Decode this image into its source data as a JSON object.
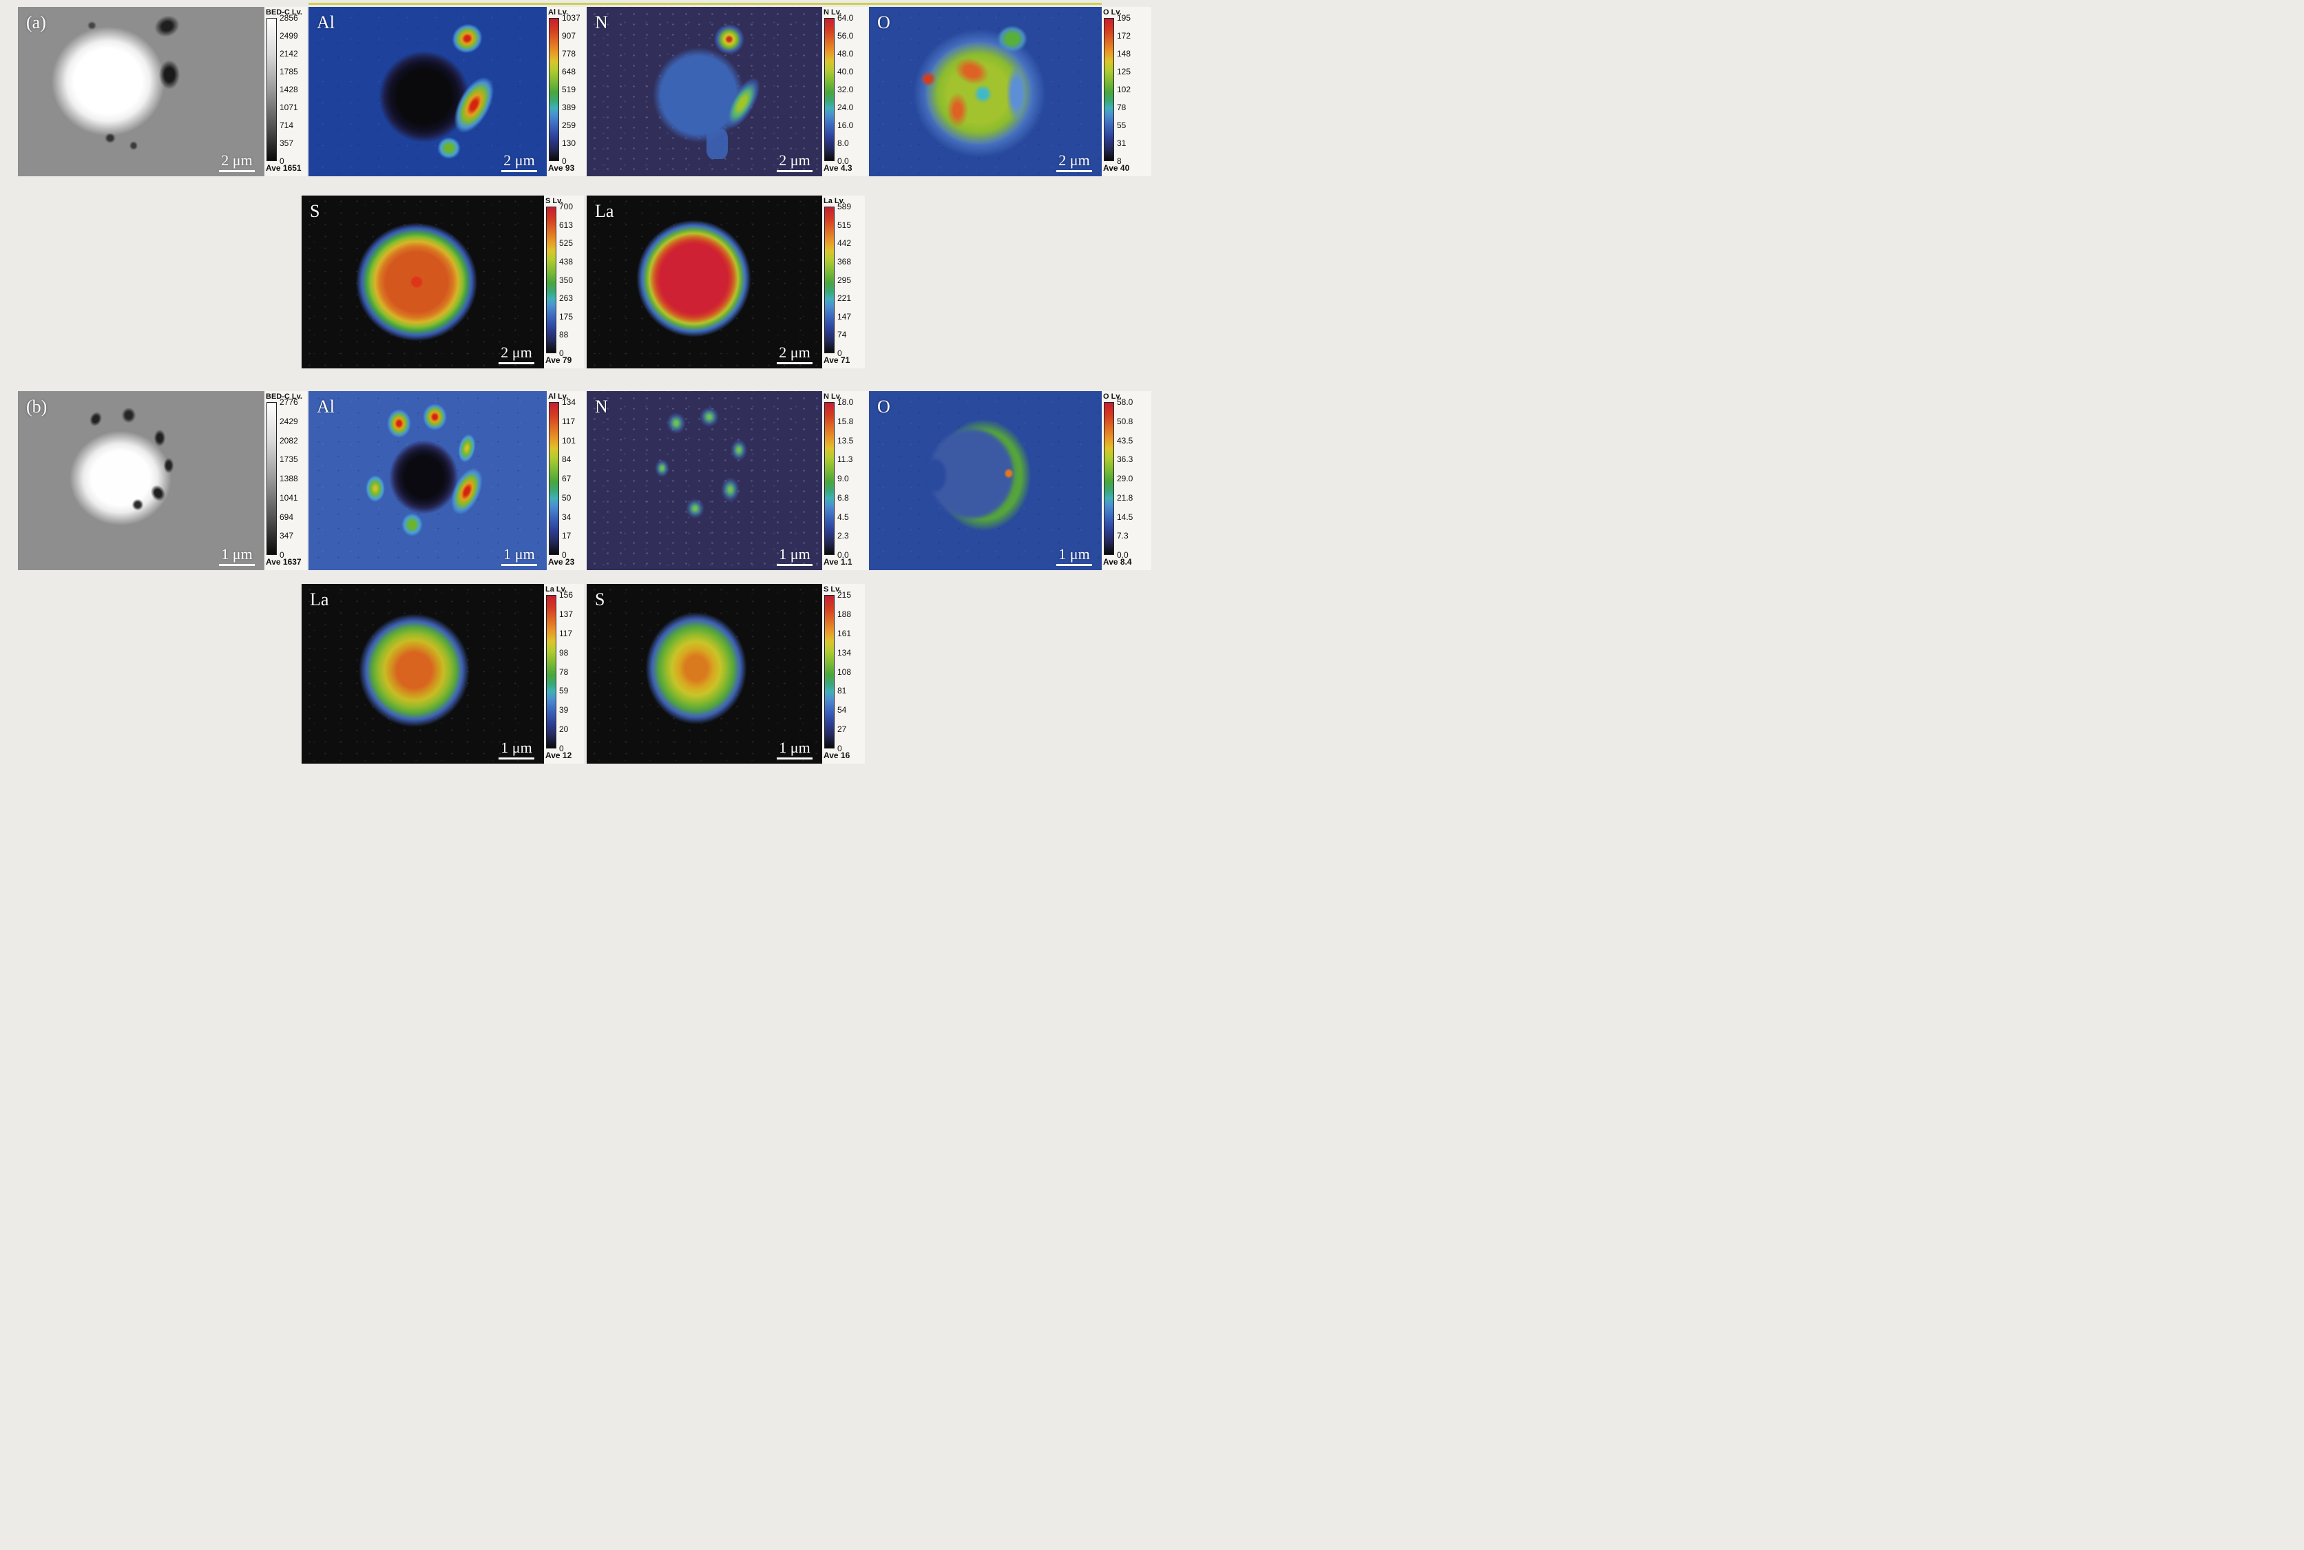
{
  "figure_type": "EPMA elemental mapping figure, panels (a) and (b)",
  "colors": {
    "page_background": "#edebe8",
    "map_blue_background": "#1e419b",
    "map_navy_background": "#312f5a",
    "map_black_background": "#0d0d0d",
    "map_gray_background": "#8e8e8e",
    "top_accent_line": "#cdd04f"
  },
  "panel_a": {
    "label": "(a)",
    "scale_bar_label": "2 μm",
    "maps": [
      {
        "key": "bedc_a",
        "label": "(a)",
        "scale": "2 μm",
        "cbar_title": "BED-C Lv.",
        "ave": "Ave 1651",
        "ticks": [
          "2856",
          "2499",
          "2142",
          "1785",
          "1428",
          "1071",
          "714",
          "357",
          "0"
        ]
      },
      {
        "key": "al_a",
        "label": "Al",
        "scale": "2 μm",
        "cbar_title": "Al Lv.",
        "ave": "Ave 93",
        "ticks": [
          "1037",
          "907",
          "778",
          "648",
          "519",
          "389",
          "259",
          "130",
          "0"
        ]
      },
      {
        "key": "n_a",
        "label": "N",
        "scale": "2 μm",
        "cbar_title": "N Lv.",
        "ave": "Ave 4.3",
        "ticks": [
          "64.0",
          "56.0",
          "48.0",
          "40.0",
          "32.0",
          "24.0",
          "16.0",
          "8.0",
          "0.0"
        ]
      },
      {
        "key": "o_a",
        "label": "O",
        "scale": "2 μm",
        "cbar_title": "O Lv.",
        "ave": "Ave 40",
        "ticks": [
          "195",
          "172",
          "148",
          "125",
          "102",
          "78",
          "55",
          "31",
          "8"
        ]
      },
      {
        "key": "s_a",
        "label": "S",
        "scale": "2 μm",
        "cbar_title": "S Lv.",
        "ave": "Ave 79",
        "ticks": [
          "700",
          "613",
          "525",
          "438",
          "350",
          "263",
          "175",
          "88",
          "0"
        ]
      },
      {
        "key": "la_a",
        "label": "La",
        "scale": "2 μm",
        "cbar_title": "La Lv.",
        "ave": "Ave 71",
        "ticks": [
          "589",
          "515",
          "442",
          "368",
          "295",
          "221",
          "147",
          "74",
          "0"
        ]
      }
    ]
  },
  "panel_b": {
    "label": "(b)",
    "scale_bar_label": "1 μm",
    "maps": [
      {
        "key": "bedc_b",
        "label": "(b)",
        "scale": "1 μm",
        "cbar_title": "BED-C Lv.",
        "ave": "Ave 1637",
        "ticks": [
          "2776",
          "2429",
          "2082",
          "1735",
          "1388",
          "1041",
          "694",
          "347",
          "0"
        ]
      },
      {
        "key": "al_b",
        "label": "Al",
        "scale": "1 μm",
        "cbar_title": "Al Lv.",
        "ave": "Ave 23",
        "ticks": [
          "134",
          "117",
          "101",
          "84",
          "67",
          "50",
          "34",
          "17",
          "0"
        ]
      },
      {
        "key": "n_b",
        "label": "N",
        "scale": "1 μm",
        "cbar_title": "N Lv.",
        "ave": "Ave 1.1",
        "ticks": [
          "18.0",
          "15.8",
          "13.5",
          "11.3",
          "9.0",
          "6.8",
          "4.5",
          "2.3",
          "0.0"
        ]
      },
      {
        "key": "o_b",
        "label": "O",
        "scale": "1 μm",
        "cbar_title": "O Lv.",
        "ave": "Ave 8.4",
        "ticks": [
          "58.0",
          "50.8",
          "43.5",
          "36.3",
          "29.0",
          "21.8",
          "14.5",
          "7.3",
          "0.0"
        ]
      },
      {
        "key": "la_b",
        "label": "La",
        "scale": "1 μm",
        "cbar_title": "La Lv.",
        "ave": "Ave 12",
        "ticks": [
          "156",
          "137",
          "117",
          "98",
          "78",
          "59",
          "39",
          "20",
          "0"
        ]
      },
      {
        "key": "s_b",
        "label": "S",
        "scale": "1 μm",
        "cbar_title": "S Lv.",
        "ave": "Ave 16",
        "ticks": [
          "215",
          "188",
          "161",
          "134",
          "108",
          "81",
          "54",
          "27",
          "0"
        ]
      }
    ]
  }
}
